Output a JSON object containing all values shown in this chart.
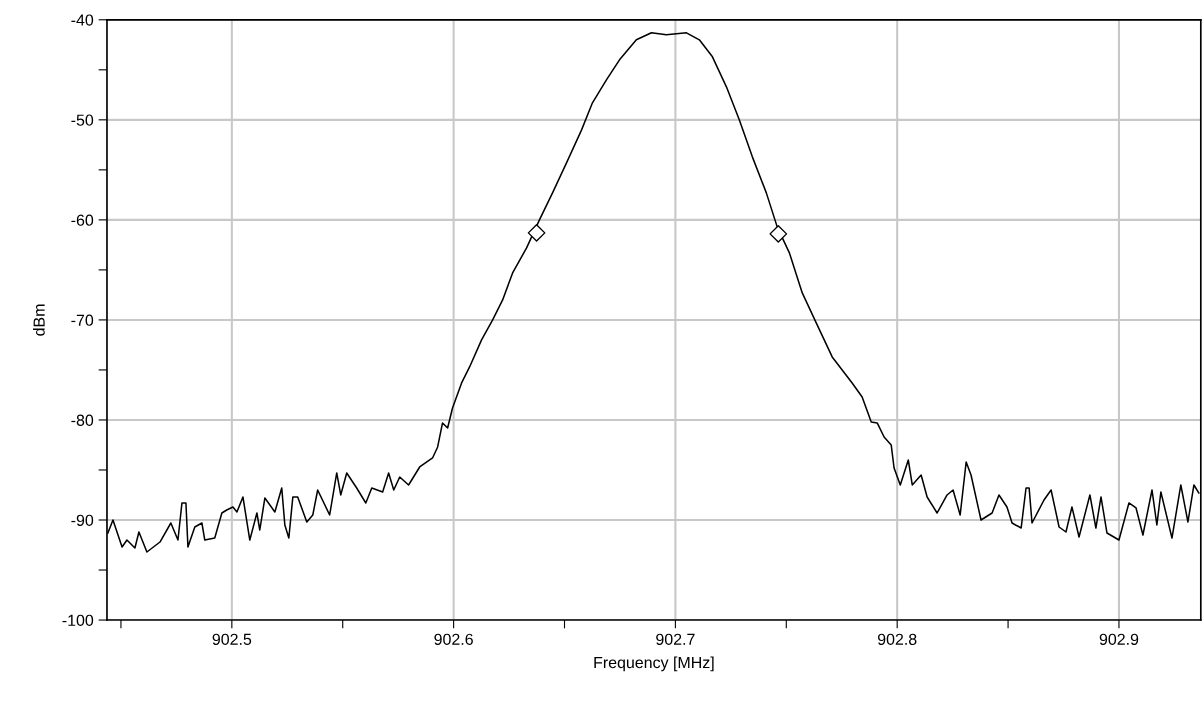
{
  "chart_data": {
    "type": "line",
    "xlabel": "Frequency [MHz]",
    "ylabel": "dBm",
    "xlim": [
      902.4437,
      902.9369
    ],
    "ylim": [
      -100,
      -40
    ],
    "xticks": [
      {
        "value": 902.45,
        "label": null
      },
      902.5,
      {
        "value": 902.55,
        "label": null
      },
      902.6,
      {
        "value": 902.65,
        "label": null
      },
      902.7,
      {
        "value": 902.75,
        "label": null
      },
      902.8,
      {
        "value": 902.85,
        "label": null
      },
      902.9
    ],
    "yticks": [
      {
        "value": -100,
        "label": "-100"
      },
      {
        "value": -95,
        "label": null
      },
      {
        "value": -90,
        "label": "-90"
      },
      {
        "value": -85,
        "label": null
      },
      {
        "value": -80,
        "label": "-80"
      },
      {
        "value": -75,
        "label": null
      },
      {
        "value": -70,
        "label": "-70"
      },
      {
        "value": -65,
        "label": null
      },
      {
        "value": -60,
        "label": "-60"
      },
      {
        "value": -55,
        "label": null
      },
      {
        "value": -50,
        "label": "-50"
      },
      {
        "value": -45,
        "label": null
      },
      {
        "value": -40,
        "label": "-40"
      }
    ],
    "grid": true,
    "series": [
      {
        "color": "#000000",
        "marker": "none",
        "line_style": "solid",
        "x": [
          902.4441,
          902.4464,
          902.4505,
          902.4527,
          902.4563,
          902.4581,
          902.4617,
          902.4676,
          902.4725,
          902.4757,
          902.4775,
          902.4793,
          902.4802,
          902.4833,
          902.4865,
          902.4878,
          902.4923,
          902.4955,
          902.4977,
          902.5005,
          902.5023,
          902.505,
          902.5081,
          902.5113,
          902.5126,
          902.5149,
          902.5194,
          902.5225,
          902.5239,
          902.5257,
          902.5275,
          902.5297,
          902.5338,
          902.5365,
          902.5387,
          902.5441,
          902.5473,
          902.5491,
          902.5518,
          902.5563,
          902.5604,
          902.5631,
          902.568,
          902.5707,
          902.573,
          902.5757,
          902.5797,
          902.5847,
          902.5905,
          902.5928,
          902.595,
          902.5973,
          902.5995,
          902.6036,
          902.6072,
          902.6126,
          902.6176,
          902.6221,
          902.6266,
          902.6329,
          902.6387,
          902.6446,
          902.6509,
          902.6577,
          902.6626,
          902.6689,
          902.6748,
          902.6824,
          902.6892,
          902.6959,
          902.705,
          902.7108,
          902.7167,
          902.723,
          902.7288,
          902.7347,
          902.741,
          902.7459,
          902.7514,
          902.7572,
          902.7635,
          902.7707,
          902.7797,
          902.7842,
          902.7883,
          902.791,
          902.7941,
          902.7973,
          902.7986,
          902.8014,
          902.805,
          902.8068,
          902.8108,
          902.8135,
          902.818,
          902.8225,
          902.8252,
          902.8284,
          902.8311,
          902.8333,
          902.8378,
          902.8428,
          902.8459,
          902.8495,
          902.8518,
          902.8559,
          902.8581,
          902.8595,
          902.8608,
          902.8662,
          902.8694,
          902.873,
          902.8761,
          902.8788,
          902.882,
          902.8869,
          902.8896,
          902.8919,
          902.8946,
          902.9,
          902.9045,
          902.9077,
          902.9108,
          902.9149,
          902.9171,
          902.9189,
          902.9239,
          902.9279,
          902.9311,
          902.9338,
          902.936
        ],
        "values": [
          -91.3,
          -90,
          -92.7,
          -92,
          -92.8,
          -91.2,
          -93.2,
          -92.2,
          -90.3,
          -92,
          -88.3,
          -88.3,
          -92.7,
          -90.7,
          -90.3,
          -92,
          -91.8,
          -89.3,
          -89,
          -88.7,
          -89.2,
          -87.7,
          -92,
          -89.3,
          -91,
          -87.8,
          -89.2,
          -86.8,
          -90.5,
          -91.8,
          -87.7,
          -87.7,
          -90.2,
          -89.5,
          -87,
          -89.5,
          -85.3,
          -87.5,
          -85.3,
          -86.8,
          -88.3,
          -86.8,
          -87.2,
          -85.3,
          -87,
          -85.7,
          -86.5,
          -84.7,
          -83.8,
          -82.7,
          -80.3,
          -80.8,
          -78.8,
          -76.3,
          -74.7,
          -72,
          -70,
          -68,
          -65.3,
          -62.8,
          -60,
          -57.3,
          -54.3,
          -51,
          -48.3,
          -46,
          -44,
          -42,
          -41.3,
          -41.5,
          -41.3,
          -42,
          -43.7,
          -46.7,
          -50,
          -53.7,
          -57.3,
          -60.7,
          -63.3,
          -67.3,
          -70.3,
          -73.7,
          -76.3,
          -77.7,
          -80.2,
          -80.3,
          -81.7,
          -82.5,
          -84.8,
          -86.5,
          -84,
          -86.5,
          -85.5,
          -87.7,
          -89.3,
          -87.5,
          -87,
          -89.5,
          -84.2,
          -85.5,
          -90,
          -89.3,
          -87.5,
          -88.7,
          -90.3,
          -90.8,
          -86.8,
          -86.8,
          -90.3,
          -88,
          -87,
          -90.7,
          -91.2,
          -88.7,
          -91.7,
          -87.5,
          -90.8,
          -87.7,
          -91.3,
          -92,
          -88.3,
          -88.8,
          -91.5,
          -87,
          -90.5,
          -87.2,
          -91.8,
          -86.5,
          -90.2,
          -86.5,
          -87.3
        ]
      },
      {
        "type": "scatter",
        "color": "#000000",
        "marker": "diamond",
        "x": [
          902.6374,
          902.7464
        ],
        "values": [
          -61.3,
          -61.4
        ]
      }
    ]
  }
}
